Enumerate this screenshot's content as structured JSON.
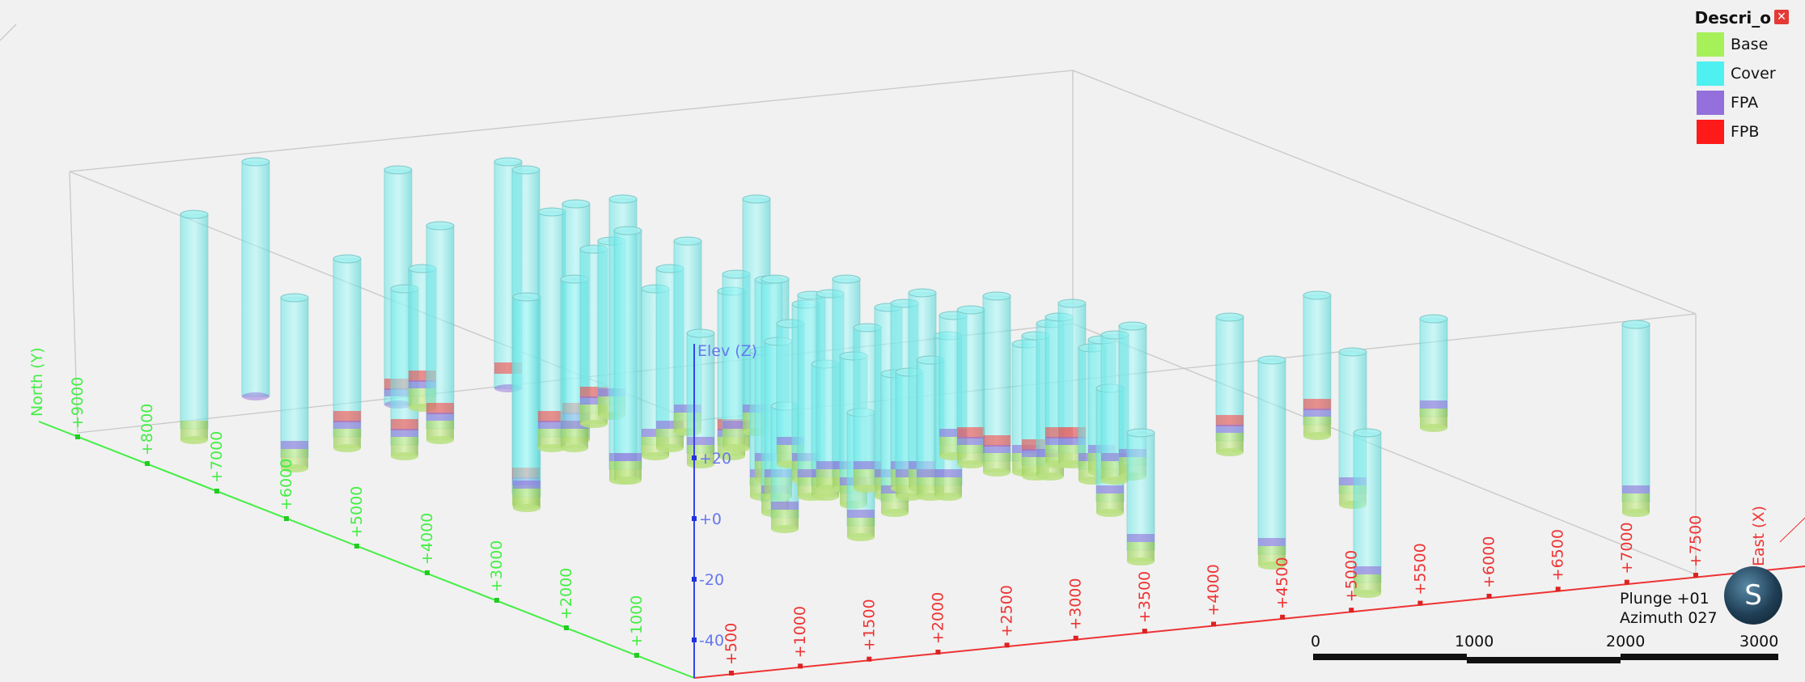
{
  "legend": {
    "title": "Descri_o",
    "items": [
      {
        "label": "Base",
        "color": "#a6f05a"
      },
      {
        "label": "Cover",
        "color": "#4ff0f0"
      },
      {
        "label": "FPA",
        "color": "#9370db"
      },
      {
        "label": "FPB",
        "color": "#ff1a1a"
      }
    ]
  },
  "view": {
    "plunge_label": "Plunge +01",
    "azimuth_label": "Azimuth 027",
    "compass_glyph": "S"
  },
  "axes": {
    "north_label": "North (Y)",
    "east_label": "East (X)",
    "elev_label": "Elev (Z)",
    "north_ticks": [
      "+9000",
      "+8000",
      "+7000",
      "+6000",
      "+5000",
      "+4000",
      "+3000",
      "+2000",
      "+1000"
    ],
    "east_ticks": [
      "+500",
      "+1000",
      "+1500",
      "+2000",
      "+2500",
      "+3000",
      "+3500",
      "+4000",
      "+4500",
      "+5000",
      "+5500",
      "+6000",
      "+6500",
      "+7000",
      "+7500"
    ],
    "elev_ticks": [
      "+20",
      "+0",
      "-20",
      "-40"
    ],
    "north_color": "#44ee44",
    "east_color": "#ee3333",
    "elev_color": "#3344ee"
  },
  "scale_bar": {
    "labels": [
      "0",
      "1000",
      "2000",
      "3000"
    ]
  }
}
